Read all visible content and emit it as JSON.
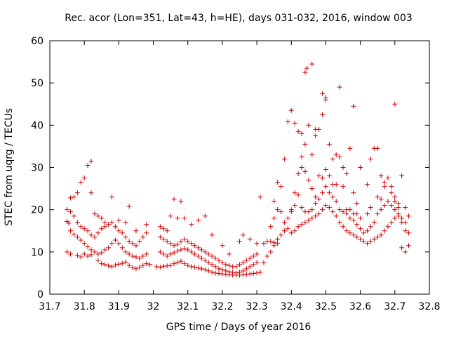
{
  "chart_data": {
    "type": "scatter",
    "title": "Rec. acor (Lon=351, Lat=43, h=HE), days 031-032, 2016, window 003",
    "xlabel": "GPS time / Days of year 2016",
    "ylabel": "STEC from uqrg / TECUs",
    "xlim": [
      31.7,
      32.8
    ],
    "ylim": [
      0,
      60
    ],
    "xticks": [
      "31.7",
      "31.8",
      "31.9",
      "32",
      "32.1",
      "32.2",
      "32.3",
      "32.4",
      "32.5",
      "32.6",
      "32.7",
      "32.8"
    ],
    "yticks": [
      "0",
      "10",
      "20",
      "30",
      "40",
      "50",
      "60"
    ],
    "grid": false,
    "marker": "plus",
    "color": "#cc0000",
    "points": [
      [
        31.75,
        10.0
      ],
      [
        31.76,
        9.5
      ],
      [
        31.78,
        9.2
      ],
      [
        31.79,
        8.8
      ],
      [
        31.8,
        9.5
      ],
      [
        31.81,
        9.0
      ],
      [
        31.82,
        9.3
      ],
      [
        31.84,
        8.0
      ],
      [
        31.85,
        7.2
      ],
      [
        31.86,
        7.0
      ],
      [
        31.87,
        6.7
      ],
      [
        31.88,
        6.5
      ],
      [
        31.89,
        6.9
      ],
      [
        31.9,
        7.1
      ],
      [
        31.91,
        7.3
      ],
      [
        31.92,
        7.6
      ],
      [
        31.93,
        6.8
      ],
      [
        31.94,
        6.3
      ],
      [
        31.95,
        6.0
      ],
      [
        31.96,
        6.4
      ],
      [
        31.97,
        6.8
      ],
      [
        31.98,
        7.2
      ],
      [
        31.99,
        7.0
      ],
      [
        31.75,
        17.2
      ],
      [
        31.755,
        16.8
      ],
      [
        31.76,
        15.0
      ],
      [
        31.77,
        14.2
      ],
      [
        31.78,
        13.5
      ],
      [
        31.79,
        12.8
      ],
      [
        31.8,
        12.0
      ],
      [
        31.81,
        11.2
      ],
      [
        31.82,
        10.5
      ],
      [
        31.83,
        10.0
      ],
      [
        31.84,
        9.5
      ],
      [
        31.85,
        9.8
      ],
      [
        31.86,
        10.5
      ],
      [
        31.87,
        11.0
      ],
      [
        31.88,
        12.0
      ],
      [
        31.89,
        12.8
      ],
      [
        31.9,
        12.0
      ],
      [
        31.91,
        11.0
      ],
      [
        31.92,
        10.0
      ],
      [
        31.93,
        9.5
      ],
      [
        31.94,
        9.0
      ],
      [
        31.95,
        8.8
      ],
      [
        31.96,
        8.5
      ],
      [
        31.97,
        9.0
      ],
      [
        31.98,
        9.5
      ],
      [
        31.75,
        20.0
      ],
      [
        31.76,
        19.5
      ],
      [
        31.77,
        18.5
      ],
      [
        31.78,
        17.0
      ],
      [
        31.79,
        16.0
      ],
      [
        31.8,
        15.5
      ],
      [
        31.81,
        15.0
      ],
      [
        31.82,
        14.0
      ],
      [
        31.83,
        13.5
      ],
      [
        31.84,
        14.5
      ],
      [
        31.85,
        15.5
      ],
      [
        31.86,
        16.0
      ],
      [
        31.87,
        16.5
      ],
      [
        31.88,
        17.0
      ],
      [
        31.89,
        16.0
      ],
      [
        31.9,
        15.0
      ],
      [
        31.91,
        14.5
      ],
      [
        31.92,
        13.5
      ],
      [
        31.93,
        12.5
      ],
      [
        31.94,
        12.0
      ],
      [
        31.95,
        11.5
      ],
      [
        31.96,
        12.5
      ],
      [
        31.97,
        13.5
      ],
      [
        31.98,
        14.5
      ],
      [
        31.76,
        22.8
      ],
      [
        31.77,
        23.0
      ],
      [
        31.78,
        24.0
      ],
      [
        31.79,
        26.5
      ],
      [
        31.8,
        27.5
      ],
      [
        31.81,
        30.5
      ],
      [
        31.82,
        31.5
      ],
      [
        31.82,
        24.0
      ],
      [
        31.83,
        19.0
      ],
      [
        31.84,
        18.5
      ],
      [
        31.85,
        18.0
      ],
      [
        31.86,
        17.0
      ],
      [
        31.88,
        23.0
      ],
      [
        31.9,
        17.5
      ],
      [
        31.92,
        17.0
      ],
      [
        31.93,
        20.8
      ],
      [
        31.95,
        15.0
      ],
      [
        31.98,
        16.5
      ],
      [
        32.01,
        6.5
      ],
      [
        32.02,
        6.4
      ],
      [
        32.03,
        6.6
      ],
      [
        32.04,
        6.7
      ],
      [
        32.05,
        6.8
      ],
      [
        32.06,
        7.2
      ],
      [
        32.07,
        7.5
      ],
      [
        32.08,
        7.8
      ],
      [
        32.09,
        7.2
      ],
      [
        32.1,
        6.8
      ],
      [
        32.11,
        6.5
      ],
      [
        32.12,
        6.4
      ],
      [
        32.13,
        6.2
      ],
      [
        32.14,
        6.0
      ],
      [
        32.15,
        5.8
      ],
      [
        32.16,
        5.5
      ],
      [
        32.17,
        5.2
      ],
      [
        32.18,
        5.0
      ],
      [
        32.19,
        4.9
      ],
      [
        32.2,
        4.8
      ],
      [
        32.21,
        4.7
      ],
      [
        32.22,
        4.6
      ],
      [
        32.23,
        4.5
      ],
      [
        32.24,
        4.5
      ],
      [
        32.25,
        4.5
      ],
      [
        32.26,
        4.6
      ],
      [
        32.27,
        4.7
      ],
      [
        32.28,
        4.8
      ],
      [
        32.29,
        4.9
      ],
      [
        32.3,
        5.0
      ],
      [
        32.31,
        5.2
      ],
      [
        32.02,
        10.0
      ],
      [
        32.03,
        9.5
      ],
      [
        32.04,
        9.0
      ],
      [
        32.05,
        9.5
      ],
      [
        32.06,
        9.8
      ],
      [
        32.07,
        10.2
      ],
      [
        32.08,
        10.5
      ],
      [
        32.09,
        10.8
      ],
      [
        32.1,
        10.5
      ],
      [
        32.11,
        10.0
      ],
      [
        32.12,
        9.5
      ],
      [
        32.13,
        9.0
      ],
      [
        32.14,
        8.5
      ],
      [
        32.15,
        8.0
      ],
      [
        32.16,
        7.5
      ],
      [
        32.17,
        7.0
      ],
      [
        32.18,
        6.5
      ],
      [
        32.19,
        6.0
      ],
      [
        32.2,
        5.8
      ],
      [
        32.21,
        5.5
      ],
      [
        32.22,
        5.3
      ],
      [
        32.23,
        5.2
      ],
      [
        32.24,
        5.0
      ],
      [
        32.25,
        5.2
      ],
      [
        32.26,
        5.5
      ],
      [
        32.27,
        6.0
      ],
      [
        32.28,
        6.5
      ],
      [
        32.29,
        7.0
      ],
      [
        32.3,
        7.5
      ],
      [
        32.02,
        13.5
      ],
      [
        32.03,
        13.0
      ],
      [
        32.04,
        12.5
      ],
      [
        32.05,
        12.0
      ],
      [
        32.06,
        11.5
      ],
      [
        32.07,
        11.8
      ],
      [
        32.08,
        12.5
      ],
      [
        32.09,
        13.0
      ],
      [
        32.1,
        12.5
      ],
      [
        32.11,
        12.0
      ],
      [
        32.12,
        11.5
      ],
      [
        32.13,
        11.0
      ],
      [
        32.14,
        10.5
      ],
      [
        32.15,
        10.0
      ],
      [
        32.16,
        9.5
      ],
      [
        32.17,
        9.0
      ],
      [
        32.18,
        8.5
      ],
      [
        32.19,
        8.0
      ],
      [
        32.2,
        7.5
      ],
      [
        32.21,
        7.0
      ],
      [
        32.22,
        6.8
      ],
      [
        32.23,
        6.5
      ],
      [
        32.24,
        6.5
      ],
      [
        32.25,
        7.0
      ],
      [
        32.26,
        7.5
      ],
      [
        32.27,
        8.0
      ],
      [
        32.28,
        8.5
      ],
      [
        32.29,
        9.0
      ],
      [
        32.3,
        9.5
      ],
      [
        32.02,
        16.0
      ],
      [
        32.03,
        15.5
      ],
      [
        32.04,
        15.0
      ],
      [
        32.05,
        18.5
      ],
      [
        32.06,
        22.5
      ],
      [
        32.07,
        18.0
      ],
      [
        32.08,
        22.0
      ],
      [
        32.09,
        18.0
      ],
      [
        32.11,
        16.5
      ],
      [
        32.13,
        17.5
      ],
      [
        32.15,
        18.5
      ],
      [
        32.17,
        14.0
      ],
      [
        32.2,
        11.5
      ],
      [
        32.22,
        9.5
      ],
      [
        32.25,
        12.5
      ],
      [
        32.26,
        14.0
      ],
      [
        32.28,
        13.0
      ],
      [
        32.3,
        12.0
      ],
      [
        32.31,
        23.0
      ],
      [
        32.32,
        12.0
      ],
      [
        32.33,
        12.5
      ],
      [
        32.34,
        12.5
      ],
      [
        32.35,
        12.2
      ],
      [
        32.36,
        12.0
      ],
      [
        32.32,
        7.5
      ],
      [
        32.33,
        9.0
      ],
      [
        32.34,
        10.0
      ],
      [
        32.35,
        11.5
      ],
      [
        32.36,
        13.0
      ],
      [
        32.37,
        14.0
      ],
      [
        32.38,
        15.0
      ],
      [
        32.39,
        15.5
      ],
      [
        32.4,
        14.5
      ],
      [
        32.41,
        15.0
      ],
      [
        32.42,
        16.0
      ],
      [
        32.43,
        16.5
      ],
      [
        32.44,
        17.0
      ],
      [
        32.45,
        17.5
      ],
      [
        32.46,
        18.0
      ],
      [
        32.47,
        18.5
      ],
      [
        32.48,
        19.0
      ],
      [
        32.49,
        20.0
      ],
      [
        32.5,
        21.0
      ],
      [
        32.51,
        20.5
      ],
      [
        32.52,
        19.5
      ],
      [
        32.53,
        18.5
      ],
      [
        32.54,
        17.0
      ],
      [
        32.55,
        16.0
      ],
      [
        32.56,
        15.0
      ],
      [
        32.57,
        14.5
      ],
      [
        32.58,
        14.0
      ],
      [
        32.59,
        13.5
      ],
      [
        32.6,
        13.0
      ],
      [
        32.61,
        12.5
      ],
      [
        32.62,
        12.0
      ],
      [
        32.63,
        12.5
      ],
      [
        32.64,
        13.0
      ],
      [
        32.65,
        13.5
      ],
      [
        32.66,
        14.0
      ],
      [
        32.67,
        15.0
      ],
      [
        32.68,
        16.0
      ],
      [
        32.69,
        17.0
      ],
      [
        32.7,
        18.0
      ],
      [
        32.71,
        18.5
      ],
      [
        32.72,
        17.0
      ],
      [
        32.73,
        15.0
      ],
      [
        32.74,
        14.5
      ],
      [
        32.34,
        16.0
      ],
      [
        32.35,
        18.0
      ],
      [
        32.36,
        20.0
      ],
      [
        32.37,
        19.5
      ],
      [
        32.38,
        17.0
      ],
      [
        32.39,
        18.0
      ],
      [
        32.4,
        19.5
      ],
      [
        32.41,
        24.0
      ],
      [
        32.42,
        28.5
      ],
      [
        32.43,
        30.0
      ],
      [
        32.44,
        29.0
      ],
      [
        32.45,
        27.0
      ],
      [
        32.46,
        25.0
      ],
      [
        32.47,
        23.0
      ],
      [
        32.48,
        22.5
      ],
      [
        32.49,
        24.0
      ],
      [
        32.5,
        25.5
      ],
      [
        32.51,
        24.0
      ],
      [
        32.52,
        23.0
      ],
      [
        32.53,
        22.0
      ],
      [
        32.54,
        20.0
      ],
      [
        32.55,
        19.5
      ],
      [
        32.56,
        19.0
      ],
      [
        32.57,
        18.0
      ],
      [
        32.58,
        17.5
      ],
      [
        32.59,
        16.5
      ],
      [
        32.6,
        15.5
      ],
      [
        32.61,
        14.5
      ],
      [
        32.62,
        15.0
      ],
      [
        32.63,
        16.0
      ],
      [
        32.64,
        17.0
      ],
      [
        32.65,
        19.0
      ],
      [
        32.66,
        20.0
      ],
      [
        32.67,
        21.0
      ],
      [
        32.68,
        22.0
      ],
      [
        32.69,
        21.0
      ],
      [
        32.7,
        20.0
      ],
      [
        32.71,
        19.0
      ],
      [
        32.72,
        18.0
      ],
      [
        32.73,
        17.0
      ],
      [
        32.74,
        18.5
      ],
      [
        32.35,
        22.0
      ],
      [
        32.36,
        26.5
      ],
      [
        32.37,
        25.5
      ],
      [
        32.38,
        32.0
      ],
      [
        32.39,
        40.8
      ],
      [
        32.4,
        43.5
      ],
      [
        32.41,
        40.5
      ],
      [
        32.42,
        38.5
      ],
      [
        32.43,
        32.5
      ],
      [
        32.44,
        35.5
      ],
      [
        32.45,
        40.0
      ],
      [
        32.46,
        33.0
      ],
      [
        32.47,
        37.5
      ],
      [
        32.48,
        39.0
      ],
      [
        32.49,
        42.5
      ],
      [
        32.5,
        46.5
      ],
      [
        32.51,
        35.5
      ],
      [
        32.52,
        32.0
      ],
      [
        32.53,
        33.0
      ],
      [
        32.54,
        32.5
      ],
      [
        32.55,
        30.0
      ],
      [
        32.56,
        28.5
      ],
      [
        32.57,
        34.5
      ],
      [
        32.58,
        24.0
      ],
      [
        32.59,
        21.5
      ],
      [
        32.6,
        30.0
      ],
      [
        32.62,
        26.0
      ],
      [
        32.63,
        32.0
      ],
      [
        32.64,
        34.5
      ],
      [
        32.65,
        34.5
      ],
      [
        32.66,
        28.0
      ],
      [
        32.67,
        25.5
      ],
      [
        32.68,
        27.5
      ],
      [
        32.69,
        24.0
      ],
      [
        32.7,
        22.0
      ],
      [
        32.71,
        20.5
      ],
      [
        32.72,
        28.0
      ],
      [
        32.73,
        20.5
      ],
      [
        32.44,
        52.5
      ],
      [
        32.445,
        53.5
      ],
      [
        32.46,
        54.5
      ],
      [
        32.49,
        47.5
      ],
      [
        32.5,
        46.0
      ],
      [
        32.54,
        49.0
      ],
      [
        32.58,
        44.5
      ],
      [
        32.7,
        45.0
      ],
      [
        32.43,
        38.0
      ],
      [
        32.47,
        39.0
      ],
      [
        32.4,
        20.0
      ],
      [
        32.41,
        21.0
      ],
      [
        32.42,
        23.5
      ],
      [
        32.43,
        20.5
      ],
      [
        32.44,
        19.5
      ],
      [
        32.45,
        19.5
      ],
      [
        32.46,
        20.0
      ],
      [
        32.47,
        21.5
      ],
      [
        32.48,
        28.0
      ],
      [
        32.49,
        27.5
      ],
      [
        32.5,
        29.5
      ],
      [
        32.51,
        28.0
      ],
      [
        32.52,
        26.0
      ],
      [
        32.53,
        26.0
      ],
      [
        32.55,
        25.5
      ],
      [
        32.56,
        20.0
      ],
      [
        32.57,
        20.0
      ],
      [
        32.58,
        19.0
      ],
      [
        32.59,
        19.0
      ],
      [
        32.6,
        18.0
      ],
      [
        32.62,
        19.0
      ],
      [
        32.63,
        20.5
      ],
      [
        32.65,
        23.0
      ],
      [
        32.66,
        22.5
      ],
      [
        32.67,
        26.5
      ],
      [
        32.69,
        25.5
      ],
      [
        32.7,
        23.0
      ],
      [
        32.71,
        21.5
      ],
      [
        32.72,
        11.0
      ],
      [
        32.73,
        10.0
      ],
      [
        32.74,
        11.5
      ]
    ]
  }
}
